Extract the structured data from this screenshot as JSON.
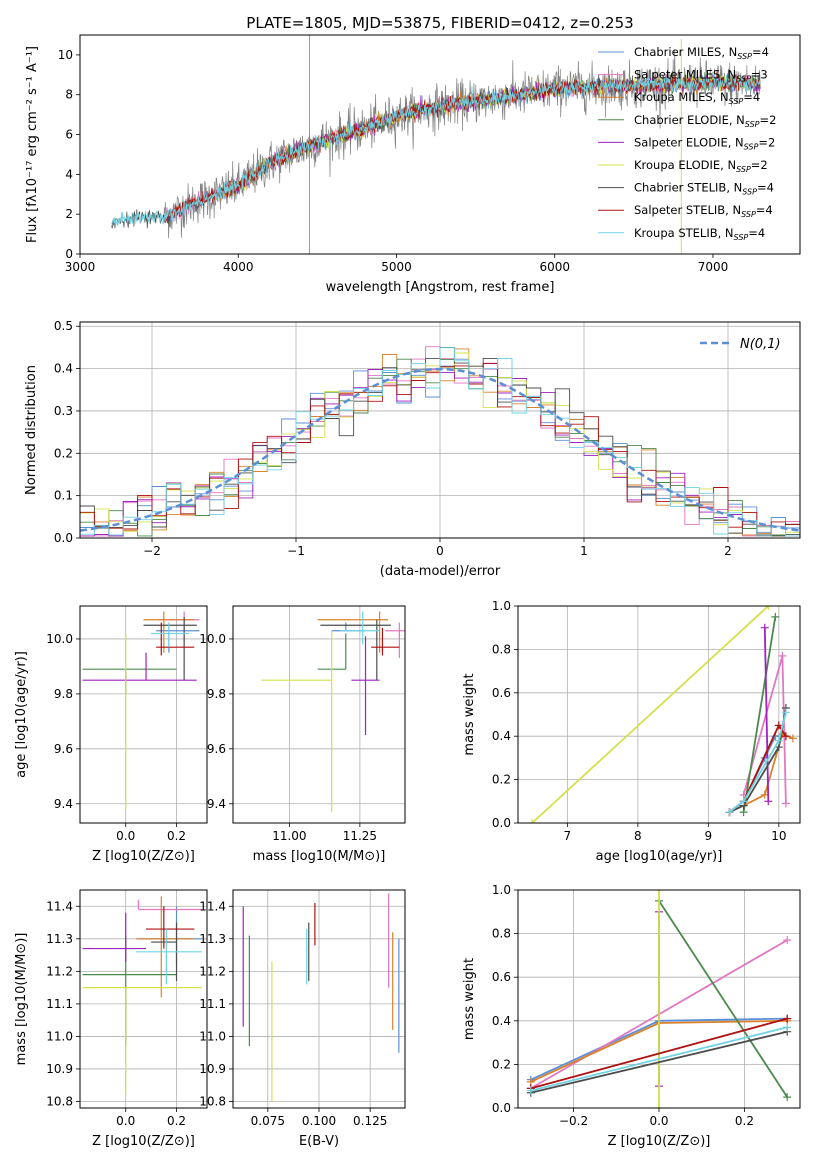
{
  "colors": {
    "chabrier_miles": "#5b8fd6",
    "salpeter_miles": "#e377c2",
    "kroupa_miles": "#d9822b",
    "chabrier_elodie": "#4c8a4c",
    "salpeter_elodie": "#a020c0",
    "kroupa_elodie": "#d4e04a",
    "chabrier_stelib": "#4d4d4d",
    "salpeter_stelib": "#b01010",
    "kroupa_stelib": "#6fd3e3",
    "spectrum": "#808080",
    "gaussian": "#5b8fd6",
    "grid": "#b0b0b0"
  },
  "chart_data": [
    {
      "id": "spectrum",
      "type": "line",
      "title": "PLATE=1805, MJD=53875, FIBERID=0412, z=0.253",
      "xlabel": "wavelength [Angstrom, rest frame]",
      "ylabel": "Flux [f$_\\lambda$10$^{-17}$ erg cm$^{-2}$ s$^{-1}$ A$^{-1}$]",
      "ylabel_text": "Flux [fλ10⁻¹⁷ erg cm⁻² s⁻¹ A⁻¹]",
      "xlim": [
        3000,
        7550
      ],
      "ylim": [
        0,
        11
      ],
      "xticks": [
        "3000",
        "4000",
        "5000",
        "6000",
        "7000"
      ],
      "yticks": [
        "0",
        "2",
        "4",
        "6",
        "8",
        "10"
      ],
      "legend": "upper right",
      "legend_entries": [
        {
          "label": "Chabrier MILES, N",
          "sub": "SSP",
          "suffix": "=4",
          "color": "chabrier_miles"
        },
        {
          "label": "Salpeter MILES, N",
          "sub": "SSP",
          "suffix": "=3",
          "color": "salpeter_miles"
        },
        {
          "label": "Kroupa MILES, N",
          "sub": "SSP",
          "suffix": "=4",
          "color": "kroupa_miles"
        },
        {
          "label": "Chabrier ELODIE, N",
          "sub": "SSP",
          "suffix": "=2",
          "color": "chabrier_elodie"
        },
        {
          "label": "Salpeter ELODIE, N",
          "sub": "SSP",
          "suffix": "=2",
          "color": "salpeter_elodie"
        },
        {
          "label": "Kroupa ELODIE, N",
          "sub": "SSP",
          "suffix": "=2",
          "color": "kroupa_elodie"
        },
        {
          "label": "Chabrier STELIB, N",
          "sub": "SSP",
          "suffix": "=4",
          "color": "chabrier_stelib"
        },
        {
          "label": "Salpeter STELIB, N",
          "sub": "SSP",
          "suffix": "=4",
          "color": "salpeter_stelib"
        },
        {
          "label": "Kroupa STELIB, N",
          "sub": "SSP",
          "suffix": "=4",
          "color": "kroupa_stelib"
        }
      ],
      "spectrum_envelope": {
        "wavelength": [
          3200,
          3400,
          3530,
          3700,
          3900,
          4000,
          4200,
          4500,
          4800,
          5000,
          5200,
          5500,
          5800,
          6000,
          6300,
          6600,
          7000,
          7300
        ],
        "flux": [
          1.6,
          1.9,
          1.8,
          2.5,
          3.1,
          3.4,
          4.6,
          5.6,
          6.3,
          6.9,
          7.3,
          7.7,
          8.0,
          8.3,
          8.4,
          8.5,
          8.6,
          8.5
        ]
      }
    },
    {
      "id": "residuals",
      "type": "line",
      "xlabel": "(data-model)/error",
      "ylabel": "Normed distribution",
      "xlim": [
        -2.5,
        2.5
      ],
      "ylim": [
        0,
        0.51
      ],
      "xticks": [
        "−2",
        "−1",
        "0",
        "1",
        "2"
      ],
      "yticks": [
        "0.0",
        "0.1",
        "0.2",
        "0.3",
        "0.4",
        "0.5"
      ],
      "grid": true,
      "legend": "upper right",
      "legend_label": "N(0,1)",
      "series": [
        {
          "name": "N(0,1)",
          "mu": 0,
          "sigma": 1
        }
      ]
    },
    {
      "id": "age_vs_Z",
      "type": "scatter",
      "xlabel": "Z [log10(Z/Z⊙)]",
      "ylabel": "age  [log10(age/yr)]",
      "xlim": [
        -0.18,
        0.32
      ],
      "ylim": [
        9.33,
        10.12
      ],
      "xticks": [
        "0.0",
        "0.2"
      ],
      "yticks": [
        "9.4",
        "9.6",
        "9.8",
        "10.0"
      ],
      "grid": true,
      "points": [
        {
          "model": "chabrier_miles",
          "x": 0.17,
          "xerr": [
            0.05,
            0.12
          ],
          "y": 10.03,
          "yerr": [
            0.08,
            0.03
          ]
        },
        {
          "model": "salpeter_miles",
          "x": 0.23,
          "xerr": [
            0.1,
            0.06
          ],
          "y": 10.07,
          "yerr": [
            0.08,
            0.03
          ]
        },
        {
          "model": "kroupa_miles",
          "x": 0.15,
          "xerr": [
            0.08,
            0.12
          ],
          "y": 10.07,
          "yerr": [
            0.12,
            0.03
          ]
        },
        {
          "model": "chabrier_elodie",
          "x": 0.0,
          "xerr": [
            0.17,
            0.2
          ],
          "y": 9.89,
          "yerr": [
            0.09,
            0.0
          ]
        },
        {
          "model": "salpeter_elodie",
          "x": 0.08,
          "xerr": [
            0.25,
            0.2
          ],
          "y": 9.85,
          "yerr": [
            0.0,
            0.1
          ]
        },
        {
          "model": "kroupa_elodie",
          "x": 0.0,
          "xerr": [
            0.0,
            0.0
          ],
          "y": 9.85,
          "yerr": [
            0.47,
            0.17
          ]
        },
        {
          "model": "chabrier_stelib",
          "x": 0.23,
          "xerr": [
            0.16,
            0.05
          ],
          "y": 10.05,
          "yerr": [
            0.2,
            0.03
          ]
        },
        {
          "model": "salpeter_stelib",
          "x": 0.14,
          "xerr": [
            0.02,
            0.13
          ],
          "y": 9.97,
          "yerr": [
            0.03,
            0.09
          ]
        },
        {
          "model": "kroupa_stelib",
          "x": 0.17,
          "xerr": [
            0.07,
            0.08
          ],
          "y": 10.02,
          "yerr": [
            0.05,
            0.04
          ]
        }
      ]
    },
    {
      "id": "age_vs_mass",
      "type": "scatter",
      "xlabel": "mass [log10(M/M⊙)]",
      "xlim": [
        10.8,
        11.41
      ],
      "ylim": [
        9.33,
        10.12
      ],
      "xticks": [
        "11.00",
        "11.25"
      ],
      "yticks": [
        "9.4",
        "9.6",
        "9.8",
        "10.0"
      ],
      "grid": true,
      "points": [
        {
          "model": "chabrier_miles",
          "x": 11.2,
          "xerr": [
            0.05,
            0.07
          ],
          "y": 10.03,
          "yerr": [
            0.0,
            0.03
          ]
        },
        {
          "model": "salpeter_miles",
          "x": 11.39,
          "xerr": [
            0.05,
            0.02
          ],
          "y": 10.03,
          "yerr": [
            0.1,
            0.03
          ]
        },
        {
          "model": "kroupa_miles",
          "x": 11.32,
          "xerr": [
            0.22,
            0.03
          ],
          "y": 10.07,
          "yerr": [
            0.12,
            0.03
          ]
        },
        {
          "model": "chabrier_elodie",
          "x": 11.2,
          "xerr": [
            0.1,
            0.0
          ],
          "y": 9.89,
          "yerr": [
            0.0,
            0.13
          ]
        },
        {
          "model": "salpeter_elodie",
          "x": 11.27,
          "xerr": [
            0.05,
            0.05
          ],
          "y": 9.85,
          "yerr": [
            0.2,
            0.16
          ]
        },
        {
          "model": "kroupa_elodie",
          "x": 11.15,
          "xerr": [
            0.25,
            0.0
          ],
          "y": 9.85,
          "yerr": [
            0.48,
            0.18
          ]
        },
        {
          "model": "chabrier_stelib",
          "x": 11.31,
          "xerr": [
            0.2,
            0.05
          ],
          "y": 10.05,
          "yerr": [
            0.2,
            0.02
          ]
        },
        {
          "model": "salpeter_stelib",
          "x": 11.33,
          "xerr": [
            0.04,
            0.06
          ],
          "y": 9.97,
          "yerr": [
            0.03,
            0.07
          ]
        },
        {
          "model": "kroupa_stelib",
          "x": 11.26,
          "xerr": [
            0.08,
            0.06
          ],
          "y": 10.03,
          "yerr": [
            0.05,
            0.07
          ]
        }
      ]
    },
    {
      "id": "massweight_vs_age",
      "type": "line",
      "xlabel": "age  [log10(age/yr)]",
      "ylabel": "mass weight",
      "xlim": [
        6.3,
        10.3
      ],
      "ylim": [
        0,
        1
      ],
      "xticks": [
        "7",
        "8",
        "9",
        "10"
      ],
      "yticks": [
        "0.0",
        "0.2",
        "0.4",
        "0.6",
        "0.8",
        "1.0"
      ],
      "grid": true,
      "series": [
        {
          "model": "chabrier_miles",
          "x": [
            9.3,
            9.5,
            9.8,
            9.95,
            10.1
          ],
          "y": [
            0.05,
            0.1,
            0.3,
            0.4,
            0.4
          ]
        },
        {
          "model": "salpeter_miles",
          "x": [
            9.5,
            10.05,
            10.1
          ],
          "y": [
            0.13,
            0.77,
            0.09
          ]
        },
        {
          "model": "kroupa_miles",
          "x": [
            9.3,
            9.5,
            9.8,
            10.05,
            10.2
          ],
          "y": [
            0.05,
            0.08,
            0.13,
            0.41,
            0.39
          ]
        },
        {
          "model": "chabrier_elodie",
          "x": [
            9.5,
            9.95
          ],
          "y": [
            0.05,
            0.95
          ]
        },
        {
          "model": "salpeter_elodie",
          "x": [
            9.8,
            9.85
          ],
          "y": [
            0.9,
            0.1
          ]
        },
        {
          "model": "kroupa_elodie",
          "x": [
            6.5,
            9.85
          ],
          "y": [
            0.0,
            1.0
          ]
        },
        {
          "model": "chabrier_stelib",
          "x": [
            9.3,
            9.5,
            10.0,
            10.1
          ],
          "y": [
            0.05,
            0.08,
            0.35,
            0.53
          ]
        },
        {
          "model": "salpeter_stelib",
          "x": [
            9.3,
            9.5,
            10.0,
            10.1
          ],
          "y": [
            0.05,
            0.1,
            0.45,
            0.4
          ]
        },
        {
          "model": "kroupa_stelib",
          "x": [
            9.3,
            9.5,
            10.0,
            10.1
          ],
          "y": [
            0.05,
            0.1,
            0.38,
            0.51
          ]
        }
      ]
    },
    {
      "id": "mass_vs_Z",
      "type": "scatter",
      "xlabel": "Z [log10(Z/Z⊙)]",
      "ylabel": "mass [log10(M/M⊙)]",
      "xlim": [
        -0.18,
        0.32
      ],
      "ylim": [
        10.78,
        11.45
      ],
      "xticks": [
        "0.0",
        "0.2"
      ],
      "yticks": [
        "10.8",
        "10.9",
        "11.0",
        "11.1",
        "11.2",
        "11.3",
        "11.4"
      ],
      "grid": true,
      "points": [
        {
          "model": "chabrier_miles",
          "x": 0.2,
          "xerr": [
            0.15,
            0.1
          ],
          "y": 11.3,
          "yerr": [
            0.08,
            0.1
          ]
        },
        {
          "model": "salpeter_miles",
          "x": 0.05,
          "xerr": [
            0.0,
            0.25
          ],
          "y": 11.39,
          "yerr": [
            0.0,
            0.03
          ]
        },
        {
          "model": "kroupa_miles",
          "x": 0.14,
          "xerr": [
            0.1,
            0.13
          ],
          "y": 11.3,
          "yerr": [
            0.18,
            0.13
          ]
        },
        {
          "model": "chabrier_elodie",
          "x": 0.0,
          "xerr": [
            0.17,
            0.2
          ],
          "y": 11.19,
          "yerr": [
            0.22,
            0.12
          ]
        },
        {
          "model": "salpeter_elodie",
          "x": 0.0,
          "xerr": [
            0.17,
            0.08
          ],
          "y": 11.27,
          "yerr": [
            0.04,
            0.11
          ]
        },
        {
          "model": "kroupa_elodie",
          "x": 0.0,
          "xerr": [
            0.17,
            0.3
          ],
          "y": 11.15,
          "yerr": [
            0.33,
            0.0
          ]
        },
        {
          "model": "chabrier_stelib",
          "x": 0.2,
          "xerr": [
            0.1,
            0.0
          ],
          "y": 11.29,
          "yerr": [
            0.12,
            0.06
          ]
        },
        {
          "model": "salpeter_stelib",
          "x": 0.15,
          "xerr": [
            0.07,
            0.12
          ],
          "y": 11.33,
          "yerr": [
            0.06,
            0.07
          ]
        },
        {
          "model": "kroupa_stelib",
          "x": 0.16,
          "xerr": [
            0.12,
            0.14
          ],
          "y": 11.26,
          "yerr": [
            0.1,
            0.07
          ]
        }
      ]
    },
    {
      "id": "mass_vs_ebv",
      "type": "scatter",
      "xlabel": "E(B-V)",
      "xlim": [
        0.058,
        0.142
      ],
      "ylim": [
        10.78,
        11.45
      ],
      "xticks": [
        "0.075",
        "0.100",
        "0.125"
      ],
      "yticks": [
        "10.8",
        "10.9",
        "11.0",
        "11.1",
        "11.2",
        "11.3",
        "11.4"
      ],
      "grid": true,
      "points": [
        {
          "model": "chabrier_miles",
          "x": 0.139,
          "yerr": [
            0.25,
            0.1
          ],
          "y": 11.2
        },
        {
          "model": "salpeter_miles",
          "x": 0.134,
          "yerr": [
            0.09,
            0.2
          ],
          "y": 11.24
        },
        {
          "model": "kroupa_miles",
          "x": 0.136,
          "yerr": [
            0.2,
            0.1
          ],
          "y": 11.22
        },
        {
          "model": "chabrier_elodie",
          "x": 0.066,
          "yerr": [
            0.22,
            0.12
          ],
          "y": 11.19
        },
        {
          "model": "salpeter_elodie",
          "x": 0.063,
          "yerr": [
            0.22,
            0.15
          ],
          "y": 11.25
        },
        {
          "model": "kroupa_elodie",
          "x": 0.077,
          "yerr": [
            0.33,
            0.1
          ],
          "y": 11.13
        },
        {
          "model": "chabrier_stelib",
          "x": 0.095,
          "yerr": [
            0.12,
            0.06
          ],
          "y": 11.29
        },
        {
          "model": "salpeter_stelib",
          "x": 0.098,
          "yerr": [
            0.05,
            0.08
          ],
          "y": 11.33
        },
        {
          "model": "kroupa_stelib",
          "x": 0.094,
          "yerr": [
            0.1,
            0.07
          ],
          "y": 11.26
        }
      ]
    },
    {
      "id": "massweight_vs_Z",
      "type": "line",
      "xlabel": "Z [log10(Z/Z⊙)]",
      "ylabel": "mass weight",
      "xlim": [
        -0.33,
        0.33
      ],
      "ylim": [
        0,
        1
      ],
      "xticks": [
        "−0.2",
        "0.0",
        "0.2"
      ],
      "yticks": [
        "0.0",
        "0.2",
        "0.4",
        "0.6",
        "0.8",
        "1.0"
      ],
      "grid": true,
      "series": [
        {
          "model": "chabrier_miles",
          "x": [
            -0.3,
            0.0,
            0.3
          ],
          "y": [
            0.13,
            0.4,
            0.41
          ]
        },
        {
          "model": "salpeter_miles",
          "x": [
            -0.3,
            0.3
          ],
          "y": [
            0.09,
            0.77
          ]
        },
        {
          "model": "kroupa_miles",
          "x": [
            -0.3,
            0.0,
            0.3
          ],
          "y": [
            0.12,
            0.39,
            0.4
          ]
        },
        {
          "model": "chabrier_elodie",
          "x": [
            0.0,
            0.3
          ],
          "y": [
            0.95,
            0.05
          ]
        },
        {
          "model": "salpeter_elodie",
          "x": [
            0.0,
            0.0
          ],
          "y": [
            0.1,
            0.9
          ]
        },
        {
          "model": "kroupa_elodie",
          "x": [
            0.0,
            0.0
          ],
          "y": [
            0.0,
            1.0
          ]
        },
        {
          "model": "chabrier_stelib",
          "x": [
            -0.3,
            0.3
          ],
          "y": [
            0.07,
            0.35
          ]
        },
        {
          "model": "salpeter_stelib",
          "x": [
            -0.3,
            0.3
          ],
          "y": [
            0.09,
            0.41
          ]
        },
        {
          "model": "kroupa_stelib",
          "x": [
            -0.3,
            0.3
          ],
          "y": [
            0.08,
            0.37
          ]
        }
      ]
    }
  ]
}
